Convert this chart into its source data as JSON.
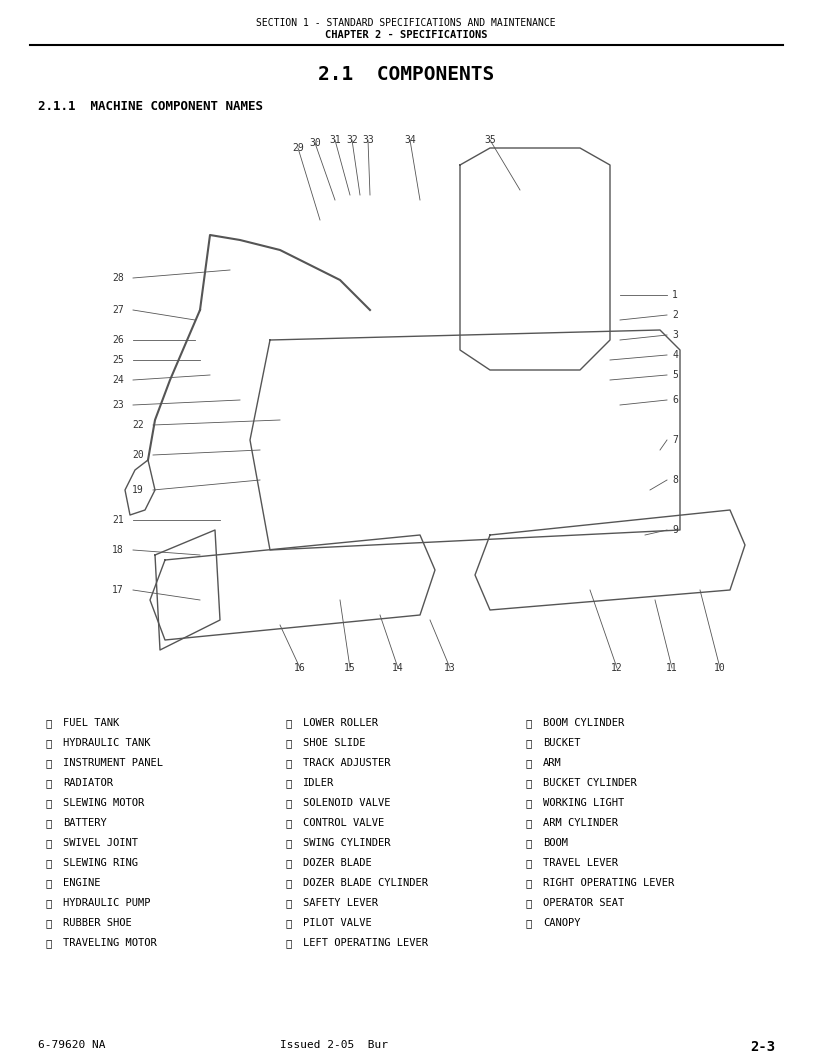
{
  "header_line1": "SECTION 1 - STANDARD SPECIFICATIONS AND MAINTENANCE",
  "header_line2": "CHAPTER 2 - SPECIFICATIONS",
  "main_title": "2.1  COMPONENTS",
  "section_title": "2.1.1  MACHINE COMPONENT NAMES",
  "footer_left": "6-79620 NA",
  "footer_center": "Issued 2-05  Bur",
  "footer_right": "2-3",
  "legend_col1": [
    [
      "①",
      "FUEL TANK"
    ],
    [
      "②",
      "HYDRAULIC TANK"
    ],
    [
      "③",
      "INSTRUMENT PANEL"
    ],
    [
      "④",
      "RADIATOR"
    ],
    [
      "⑤",
      "SLEWING MOTOR"
    ],
    [
      "⑥",
      "BATTERY"
    ],
    [
      "⑦",
      "SWIVEL JOINT"
    ],
    [
      "⑧",
      "SLEWING RING"
    ],
    [
      "⑨",
      "ENGINE"
    ],
    [
      "⑩",
      "HYDRAULIC PUMP"
    ],
    [
      "⑪",
      "RUBBER SHOE"
    ],
    [
      "⑫",
      "TRAVELING MOTOR"
    ]
  ],
  "legend_col2": [
    [
      "⑬",
      "LOWER ROLLER"
    ],
    [
      "⑭",
      "SHOE SLIDE"
    ],
    [
      "⑮",
      "TRACK ADJUSTER"
    ],
    [
      "⑯",
      "IDLER"
    ],
    [
      "⑰",
      "SOLENOID VALVE"
    ],
    [
      "⑱",
      "CONTROL VALVE"
    ],
    [
      "⑲",
      "SWING CYLINDER"
    ],
    [
      "⑳",
      "DOZER BLADE"
    ],
    [
      "⑴",
      "DOZER BLADE CYLINDER"
    ],
    [
      "⑵",
      "SAFETY LEVER"
    ],
    [
      "⑶",
      "PILOT VALVE"
    ],
    [
      "⑷",
      "LEFT OPERATING LEVER"
    ]
  ],
  "legend_col3": [
    [
      "⑸",
      "BOOM CYLINDER"
    ],
    [
      "⑹",
      "BUCKET"
    ],
    [
      "⑺",
      "ARM"
    ],
    [
      "⑻",
      "BUCKET CYLINDER"
    ],
    [
      "⑼",
      "WORKING LIGHT"
    ],
    [
      "⑽",
      "ARM CYLINDER"
    ],
    [
      "⑾",
      "BOOM"
    ],
    [
      "⑿",
      "TRAVEL LEVER"
    ],
    [
      "⒀",
      "RIGHT OPERATING LEVER"
    ],
    [
      "⒁",
      "OPERATOR SEAT"
    ],
    [
      "⒂",
      "CANOPY"
    ]
  ],
  "bg_color": "#ffffff",
  "text_color": "#000000",
  "header_fontsize": 7,
  "title_fontsize": 14,
  "section_fontsize": 9,
  "legend_fontsize": 7.5,
  "footer_fontsize": 8
}
